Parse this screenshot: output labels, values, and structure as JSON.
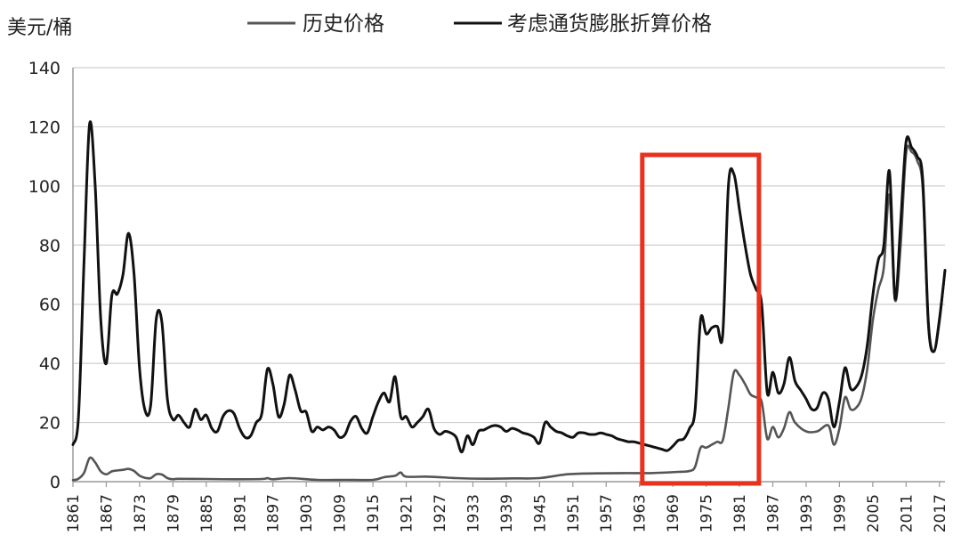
{
  "chart_data": {
    "type": "line",
    "ylabel": "美元/桶",
    "ylim": [
      0,
      140
    ],
    "yticks": [
      0,
      20,
      40,
      60,
      80,
      100,
      120,
      140
    ],
    "xlim": [
      1861,
      2018
    ],
    "xticks": [
      1861,
      1867,
      1873,
      1879,
      1885,
      1891,
      1897,
      1903,
      1909,
      1915,
      1921,
      1927,
      1933,
      1939,
      1945,
      1951,
      1957,
      1963,
      1969,
      1975,
      1981,
      1987,
      1993,
      1999,
      2005,
      2011,
      2017
    ],
    "xtick_labels": [
      "1861",
      "1867",
      "1873",
      "1879",
      "1885",
      "1891",
      "1897",
      "1903",
      "1909",
      "1915",
      "1921",
      "1927",
      "1933",
      "1939",
      "1945",
      "1951",
      "1957",
      "1963",
      "1969",
      "1975",
      "1981",
      "1987",
      "1993",
      "1999",
      "2005",
      "2011",
      "2017"
    ],
    "grid": true,
    "legend_position": "top",
    "highlight_range": [
      1963.5,
      1984.5
    ],
    "highlight_color": "#e8321e",
    "series": [
      {
        "name": "历史价格",
        "color": "#555555",
        "x": [
          1861,
          1862,
          1863,
          1864,
          1865,
          1866,
          1867,
          1868,
          1869,
          1870,
          1871,
          1872,
          1873,
          1874,
          1875,
          1876,
          1877,
          1878,
          1879,
          1880,
          1885,
          1890,
          1895,
          1896,
          1897,
          1900,
          1905,
          1910,
          1915,
          1917,
          1919,
          1920,
          1921,
          1925,
          1930,
          1935,
          1940,
          1945,
          1950,
          1955,
          1960,
          1965,
          1970,
          1972,
          1973,
          1974,
          1975,
          1976,
          1977,
          1978,
          1979,
          1980,
          1981,
          1982,
          1983,
          1984,
          1985,
          1986,
          1987,
          1988,
          1989,
          1990,
          1991,
          1993,
          1995,
          1997,
          1998,
          1999,
          2000,
          2001,
          2002,
          2003,
          2004,
          2005,
          2006,
          2007,
          2008,
          2009,
          2010,
          2011,
          2012,
          2013,
          2014,
          2015,
          2016,
          2017,
          2018
        ],
        "values": [
          0.5,
          1.0,
          3.0,
          8.0,
          6.5,
          3.5,
          2.5,
          3.5,
          3.8,
          4.0,
          4.3,
          3.6,
          2.0,
          1.3,
          1.2,
          2.5,
          2.4,
          1.2,
          0.8,
          0.95,
          0.9,
          0.8,
          0.9,
          1.2,
          0.8,
          1.2,
          0.6,
          0.6,
          0.6,
          1.5,
          2.0,
          3.1,
          1.7,
          1.7,
          1.2,
          1.0,
          1.1,
          1.2,
          2.5,
          2.8,
          2.9,
          2.9,
          3.3,
          3.6,
          5.0,
          11.5,
          11.5,
          12.5,
          13.5,
          14.0,
          25.0,
          37.0,
          36.0,
          33.0,
          29.5,
          28.5,
          27.0,
          14.5,
          18.5,
          15.0,
          18.0,
          23.5,
          20.0,
          17.0,
          17.0,
          19.0,
          12.5,
          18.0,
          28.5,
          24.5,
          25.0,
          28.5,
          38.0,
          54.5,
          65.0,
          72.5,
          97.0,
          61.5,
          79.5,
          111.0,
          111.5,
          108.5,
          99.0,
          52.5,
          44.0,
          54.0,
          71.5
        ]
      },
      {
        "name": "考虑通货膨胀折算价格",
        "color": "#111111",
        "x": [
          1861,
          1862,
          1863,
          1864,
          1865,
          1866,
          1867,
          1868,
          1869,
          1870,
          1871,
          1872,
          1873,
          1874,
          1875,
          1876,
          1877,
          1878,
          1879,
          1880,
          1881,
          1882,
          1883,
          1884,
          1885,
          1886,
          1887,
          1888,
          1889,
          1890,
          1891,
          1892,
          1893,
          1894,
          1895,
          1896,
          1897,
          1898,
          1899,
          1900,
          1901,
          1902,
          1903,
          1904,
          1905,
          1906,
          1907,
          1908,
          1909,
          1910,
          1911,
          1912,
          1913,
          1914,
          1915,
          1916,
          1917,
          1918,
          1919,
          1920,
          1921,
          1922,
          1923,
          1924,
          1925,
          1926,
          1927,
          1928,
          1929,
          1930,
          1931,
          1932,
          1933,
          1934,
          1935,
          1936,
          1937,
          1938,
          1939,
          1940,
          1941,
          1942,
          1943,
          1944,
          1945,
          1946,
          1947,
          1948,
          1949,
          1950,
          1951,
          1952,
          1953,
          1954,
          1955,
          1956,
          1957,
          1958,
          1959,
          1960,
          1961,
          1962,
          1963,
          1964,
          1965,
          1966,
          1967,
          1968,
          1969,
          1970,
          1971,
          1972,
          1973,
          1974,
          1975,
          1976,
          1977,
          1978,
          1979,
          1980,
          1981,
          1982,
          1983,
          1984,
          1985,
          1986,
          1987,
          1988,
          1989,
          1990,
          1991,
          1992,
          1993,
          1994,
          1995,
          1996,
          1997,
          1998,
          1999,
          2000,
          2001,
          2002,
          2003,
          2004,
          2005,
          2006,
          2007,
          2008,
          2009,
          2010,
          2011,
          2012,
          2013,
          2014,
          2015,
          2016,
          2017,
          2018
        ],
        "values": [
          12.5,
          22.0,
          75.0,
          121.0,
          100.0,
          55.0,
          40.0,
          63.0,
          63.5,
          70.0,
          84.0,
          70.0,
          38.0,
          24.0,
          26.0,
          55.0,
          54.0,
          28.0,
          21.0,
          22.5,
          20.0,
          18.5,
          24.5,
          21.0,
          22.5,
          18.0,
          17.0,
          22.0,
          24.0,
          23.0,
          18.0,
          15.0,
          15.5,
          20.0,
          23.0,
          38.0,
          33.0,
          22.0,
          26.0,
          36.0,
          31.0,
          24.0,
          23.5,
          17.0,
          18.5,
          17.5,
          18.5,
          17.5,
          15.0,
          16.0,
          20.5,
          22.0,
          18.0,
          16.5,
          22.0,
          27.0,
          30.0,
          27.0,
          35.5,
          22.0,
          22.0,
          18.5,
          20.0,
          22.0,
          24.5,
          18.0,
          16.0,
          17.0,
          16.5,
          15.0,
          10.0,
          15.5,
          12.5,
          17.0,
          17.5,
          18.5,
          19.0,
          18.5,
          17.0,
          18.0,
          17.5,
          16.5,
          16.0,
          15.0,
          13.0,
          20.0,
          18.5,
          17.0,
          16.5,
          15.5,
          15.0,
          16.5,
          16.5,
          16.0,
          16.0,
          16.5,
          16.0,
          15.5,
          14.5,
          14.0,
          13.5,
          13.5,
          13.0,
          12.5,
          12.0,
          11.5,
          11.0,
          10.5,
          12.0,
          14.0,
          14.5,
          18.0,
          24.0,
          55.0,
          50.0,
          52.0,
          52.5,
          50.0,
          100.0,
          104.0,
          92.0,
          80.0,
          70.0,
          65.0,
          60.0,
          30.0,
          37.0,
          30.0,
          33.0,
          42.0,
          34.0,
          31.0,
          28.0,
          24.5,
          25.0,
          30.0,
          28.0,
          18.5,
          27.0,
          38.5,
          31.5,
          32.0,
          36.0,
          46.0,
          63.0,
          75.0,
          80.0,
          105.0,
          62.0,
          87.0,
          115.0,
          113.0,
          110.0,
          102.0,
          54.0,
          44.0,
          55.0,
          71.5
        ]
      }
    ]
  }
}
